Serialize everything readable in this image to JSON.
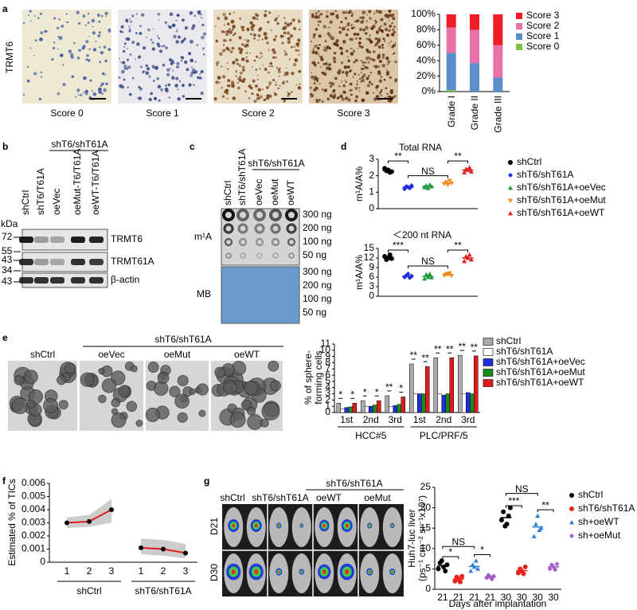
{
  "figure": {
    "a": {
      "label": "a",
      "marker": "TRMT6",
      "images": [
        "Score 0",
        "Score 1",
        "Score 2",
        "Score 3"
      ]
    },
    "b": {
      "label": "b",
      "group": "shT6/shT61A",
      "lanes": [
        "shCtrl",
        "shT6/T61A",
        "oeVec",
        "oeMut-T6/T61A",
        "oeWT-T6/T61A"
      ],
      "unit": "kDa",
      "markers": [
        72,
        55,
        43,
        34,
        43
      ],
      "proteins": [
        "TRMT6",
        "TRMT61A",
        "β-actin"
      ]
    },
    "c": {
      "label": "c",
      "group": "shT6/shT61A",
      "lanes": [
        "shCtrl",
        "shT6/shT61A",
        "oeVec",
        "oeMut",
        "oeWT"
      ],
      "blots": [
        "m¹A",
        "MB"
      ],
      "amounts": [
        "300 ng",
        "200 ng",
        "100 ng",
        "50 ng"
      ]
    },
    "d": {
      "label": "d"
    },
    "e": {
      "label": "e",
      "group": "shT6/shT61A",
      "images": [
        "shCtrl",
        "oeVec",
        "oeMut",
        "oeWT"
      ]
    },
    "f": {
      "label": "f"
    },
    "g": {
      "label": "g",
      "group": "shT6/shT61A",
      "columns": [
        "shCtrl",
        "shT6/shT61A",
        "oeWT",
        "oeMut"
      ],
      "rows": [
        "D21",
        "D30"
      ]
    }
  },
  "chart_data": [
    {
      "type": "bar",
      "stacked": true,
      "categories": [
        "Grade I",
        "Grade II",
        "Grade III"
      ],
      "series": [
        {
          "name": "Score 0",
          "color": "#7dc142",
          "values": [
            2,
            0,
            0
          ]
        },
        {
          "name": "Score 1",
          "color": "#5b8fc9",
          "values": [
            48,
            37,
            18
          ]
        },
        {
          "name": "Score 2",
          "color": "#e771a8",
          "values": [
            33,
            43,
            42
          ]
        },
        {
          "name": "Score 3",
          "color": "#ee1c25",
          "values": [
            17,
            20,
            40
          ]
        }
      ],
      "ylim": [
        0,
        100
      ],
      "yticks": [
        {
          "value": 0,
          "label": "0%"
        },
        {
          "value": 20,
          "label": "20%"
        },
        {
          "value": 40,
          "label": "40%"
        },
        {
          "value": 60,
          "label": "60%"
        },
        {
          "value": 80,
          "label": "80%"
        },
        {
          "value": 100,
          "label": "100%"
        }
      ]
    },
    {
      "type": "strip",
      "title": "Total  RNA",
      "ylabel": "m¹A/A%",
      "ylim": [
        0,
        3
      ],
      "yticks": [
        0,
        1,
        2,
        3
      ],
      "annotations": [
        "**",
        "NS",
        "**"
      ],
      "series": [
        {
          "name": "shCtrl",
          "color": "#000000",
          "marker": "circle",
          "values": [
            2.45,
            2.3,
            2.35,
            2.2,
            2.25
          ]
        },
        {
          "name": "shT6/shT61A",
          "color": "#1f2fdc",
          "marker": "diamond",
          "values": [
            1.2,
            1.35,
            1.3,
            1.25,
            1.4
          ]
        },
        {
          "name": "shT6/shT61A+oeVec",
          "color": "#1a9a3a",
          "marker": "triangle",
          "values": [
            1.3,
            1.4,
            1.25,
            1.45,
            1.35
          ]
        },
        {
          "name": "shT6/shT61A+oeMut",
          "color": "#f08a1c",
          "marker": "triangle-down",
          "values": [
            1.5,
            1.6,
            1.45,
            1.7,
            1.55
          ]
        },
        {
          "name": "shT6/shT61A+oeWT",
          "color": "#e11b1b",
          "marker": "triangle",
          "values": [
            2.2,
            2.4,
            2.35,
            2.5,
            2.25
          ]
        }
      ]
    },
    {
      "type": "strip",
      "title": "＜200 nt  RNA",
      "ylabel": "m¹A/A%",
      "ylim": [
        0,
        15
      ],
      "yticks": [
        0,
        3,
        6,
        9,
        12,
        15
      ],
      "annotations": [
        "***",
        "NS",
        "**"
      ],
      "series": [
        {
          "color": "#000000",
          "marker": "circle",
          "values": [
            12.5,
            11.5,
            12,
            13,
            11.8
          ]
        },
        {
          "color": "#1f2fdc",
          "marker": "diamond",
          "values": [
            6,
            6.5,
            7,
            5.8,
            6.3
          ]
        },
        {
          "color": "#1a9a3a",
          "marker": "triangle",
          "values": [
            5.5,
            6.8,
            6,
            7,
            5.9
          ]
        },
        {
          "color": "#f08a1c",
          "marker": "triangle-down",
          "values": [
            6.5,
            7,
            6.8,
            7.2,
            6.4
          ]
        },
        {
          "color": "#e11b1b",
          "marker": "triangle",
          "values": [
            11,
            12.5,
            12,
            13,
            11.5
          ]
        }
      ]
    },
    {
      "type": "grouped_bar",
      "ylabel": [
        "% of sphere-",
        "forming cells"
      ],
      "categories": [
        "1st",
        "2nd",
        "3rd",
        "1st",
        "2nd",
        "3rd"
      ],
      "groups": [
        "HCC#5",
        "PLC/PRF/5"
      ],
      "ylim": [
        0,
        11
      ],
      "yticks": [
        0,
        1,
        2,
        3,
        4,
        5,
        6,
        7,
        8,
        9,
        10,
        11
      ],
      "significance": [
        [
          "*",
          "*"
        ],
        [
          "*",
          "*"
        ],
        [
          "**",
          "*"
        ],
        [
          "**",
          "**"
        ],
        [
          "**",
          "**"
        ],
        [
          "**",
          "**"
        ]
      ],
      "series": [
        {
          "name": "shCtrl",
          "color": "#aaaaaa",
          "values": [
            1.5,
            1.9,
            2.7,
            7.8,
            8.8,
            9.2
          ]
        },
        {
          "name": "shT6/shT61A",
          "color": "#ffffff",
          "values": [
            0.6,
            1.0,
            1.0,
            3.0,
            3.0,
            3.0
          ]
        },
        {
          "name": "shT6/shT61A+oeVec",
          "color": "#1f2fdc",
          "values": [
            0.8,
            1.0,
            1.1,
            3.0,
            2.8,
            3.2
          ]
        },
        {
          "name": "shT6/shT61A+oeMut",
          "color": "#1a8a1a",
          "values": [
            0.9,
            1.2,
            1.3,
            3.0,
            3.0,
            3.0
          ]
        },
        {
          "name": "shT6/shT61A+oeWT",
          "color": "#e11b1b",
          "values": [
            1.5,
            1.9,
            2.5,
            7.4,
            8.8,
            9.1
          ]
        }
      ]
    },
    {
      "type": "line",
      "ylabel": "Estimated % of TICs",
      "ylim": [
        0,
        0.006
      ],
      "yticks": [
        0,
        0.001,
        0.002,
        0.003,
        0.004,
        0.005,
        0.006
      ],
      "color": "#e11b1b",
      "band_color": "#cccccc",
      "series": [
        {
          "name": "shCtrl",
          "x": [
            1,
            2,
            3
          ],
          "values": [
            0.003,
            0.0031,
            0.004
          ],
          "lower": [
            0.0026,
            0.0027,
            0.003
          ],
          "upper": [
            0.0034,
            0.0036,
            0.0048
          ]
        },
        {
          "name": "shT6/shT61A",
          "x": [
            1,
            2,
            3
          ],
          "values": [
            0.0011,
            0.001,
            0.0007
          ],
          "lower": [
            0.0006,
            0.0005,
            0.0003
          ],
          "upper": [
            0.0018,
            0.0017,
            0.0014
          ]
        }
      ]
    },
    {
      "type": "strip",
      "ylabel": [
        "Huh7-luc liver",
        "(ps⁻¹ cm⁻² sr⁻¹x10⁷)"
      ],
      "xlabel": "Days after implantation",
      "categories": [
        "21",
        "21",
        "21",
        "21",
        "30",
        "30",
        "30",
        "30"
      ],
      "ylim": [
        0,
        25
      ],
      "yticks": [
        0,
        5,
        10,
        15,
        20,
        25
      ],
      "annotations": [
        "NS",
        "*",
        "*",
        "NS",
        "***",
        "**"
      ],
      "series": [
        {
          "name": "shCtrl",
          "color": "#000000",
          "marker": "circle",
          "values": [
            [
              5,
              6.5,
              7,
              5.5,
              4.5,
              6
            ],
            [
              17,
              19,
              15.5,
              16,
              18,
              20
            ]
          ]
        },
        {
          "name": "shT6/shT61A",
          "color": "#e8261e",
          "marker": "circle",
          "values": [
            [
              2,
              3,
              2.5,
              1.8,
              3.2
            ],
            [
              4,
              5,
              4.5,
              3.8,
              5.5
            ]
          ]
        },
        {
          "name": "sh+oeWT",
          "color": "#2e7fd6",
          "marker": "triangle",
          "values": [
            [
              4.5,
              6,
              5.5,
              7,
              5
            ],
            [
              13,
              16,
              18,
              14.5,
              15
            ]
          ]
        },
        {
          "name": "sh+oeMut",
          "color": "#a05cc8",
          "marker": "diamond",
          "values": [
            [
              2.8,
              3.5,
              3,
              2.5,
              3.2
            ],
            [
              5,
              6,
              5.5,
              4.8,
              6.2
            ]
          ]
        }
      ]
    }
  ]
}
